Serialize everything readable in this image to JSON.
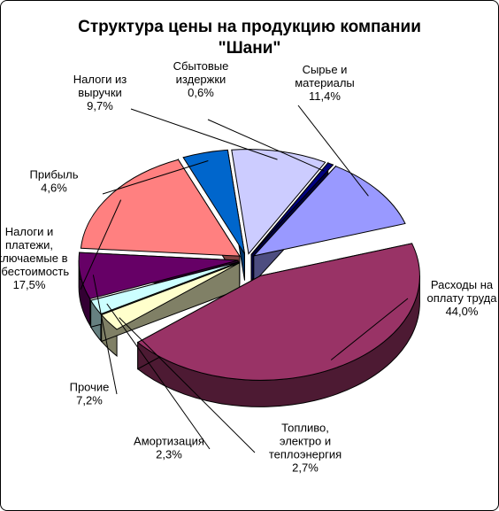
{
  "chart_data": {
    "type": "pie",
    "title_line1": "Структура цены на продукцию компании",
    "title_line2": "\"Шани\"",
    "slices": [
      {
        "label_lines": [
          "Расходы на",
          "оплату труда"
        ],
        "value": 44.0,
        "display": "44,0%",
        "color": "#993366",
        "side": "#4d1a33"
      },
      {
        "label_lines": [
          "Топливо,",
          "электро и",
          "теплоэнергия"
        ],
        "value": 2.7,
        "display": "2,7%",
        "color": "#ffffcc",
        "side": "#808066"
      },
      {
        "label_lines": [
          "Амортизация"
        ],
        "value": 2.3,
        "display": "2,3%",
        "color": "#ccffff",
        "side": "#668080"
      },
      {
        "label_lines": [
          "Прочие"
        ],
        "value": 7.2,
        "display": "7,2%",
        "color": "#660066",
        "side": "#330033"
      },
      {
        "label_lines": [
          "Налоги и",
          "платежи,",
          "включаемые в",
          "себестоимость"
        ],
        "value": 17.5,
        "display": "17,5%",
        "color": "#ff8080",
        "side": "#804040"
      },
      {
        "label_lines": [
          "Прибыль"
        ],
        "value": 4.6,
        "display": "4,6%",
        "color": "#0066cc",
        "side": "#003366"
      },
      {
        "label_lines": [
          "Налоги из",
          "выручки"
        ],
        "value": 9.7,
        "display": "9,7%",
        "color": "#ccccff",
        "side": "#666680"
      },
      {
        "label_lines": [
          "Сбытовые",
          "издержки"
        ],
        "value": 0.6,
        "display": "0,6%",
        "color": "#000080",
        "side": "#000040"
      },
      {
        "label_lines": [
          "Сырье и",
          "материалы"
        ],
        "value": 11.4,
        "display": "11,4%",
        "color": "#9999ff",
        "side": "#4d4d80"
      }
    ],
    "exploded": true,
    "three_d": true,
    "legend": "none"
  }
}
